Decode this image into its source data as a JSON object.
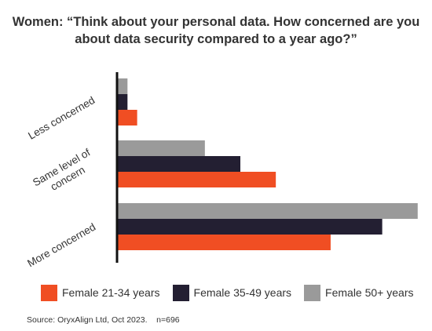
{
  "title_line1": "Women: “Think about your personal data. How concerned are you",
  "title_line2": "about data security compared to a year ago?”",
  "source": "Source: OryxAlign Ltd, Oct 2023.    n=696",
  "chart_data": {
    "type": "bar",
    "orientation": "horizontal",
    "categories": [
      "Less concerned",
      "Same level of concern",
      "More concerned"
    ],
    "category_label_lines": [
      [
        "Less concerned"
      ],
      [
        "Same level of",
        "concern"
      ],
      [
        "More concerned"
      ]
    ],
    "series": [
      {
        "name": "Female 21-34 years",
        "color": "#f04e23",
        "values": [
          6,
          49,
          66
        ]
      },
      {
        "name": "Female 35-49 years",
        "color": "#231f32",
        "values": [
          3,
          38,
          82
        ]
      },
      {
        "name": "Female 50+ years",
        "color": "#9a9a9a",
        "values": [
          3,
          27,
          93
        ]
      }
    ],
    "xlim": [
      0,
      95
    ],
    "grid": false,
    "legend_position": "bottom"
  }
}
